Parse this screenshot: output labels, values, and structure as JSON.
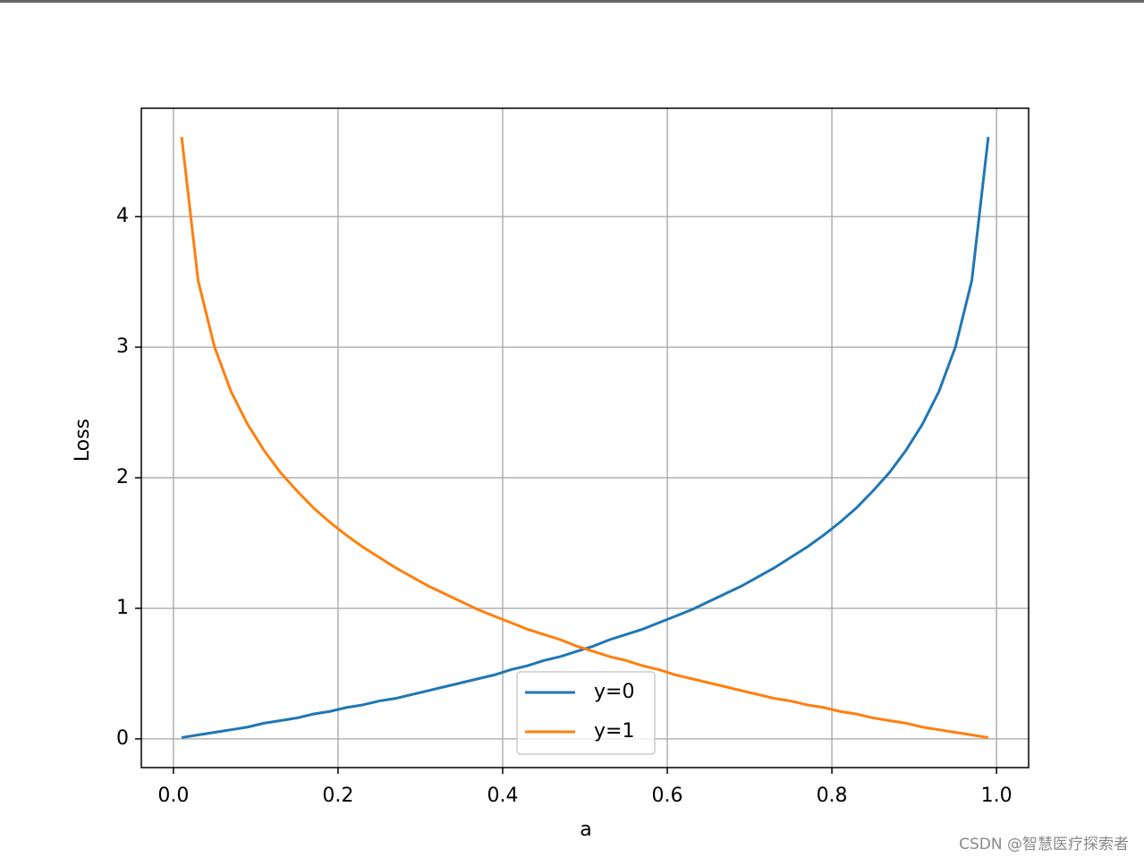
{
  "chart_data": {
    "type": "line",
    "x_label": "a",
    "y_label": "Loss",
    "x": [
      0.01,
      0.03,
      0.05,
      0.07,
      0.09,
      0.11,
      0.13,
      0.15,
      0.17,
      0.19,
      0.21,
      0.23,
      0.25,
      0.27,
      0.29,
      0.31,
      0.33,
      0.35,
      0.37,
      0.39,
      0.41,
      0.43,
      0.45,
      0.47,
      0.49,
      0.51,
      0.53,
      0.55,
      0.57,
      0.59,
      0.61,
      0.63,
      0.65,
      0.67,
      0.69,
      0.71,
      0.73,
      0.75,
      0.77,
      0.79,
      0.81,
      0.83,
      0.85,
      0.87,
      0.89,
      0.91,
      0.93,
      0.95,
      0.97,
      0.99
    ],
    "series": [
      {
        "name": "y=0",
        "color": "#1f77b4",
        "values": [
          0.01,
          0.03,
          0.05,
          0.07,
          0.09,
          0.12,
          0.14,
          0.16,
          0.19,
          0.21,
          0.24,
          0.26,
          0.29,
          0.31,
          0.34,
          0.37,
          0.4,
          0.43,
          0.46,
          0.49,
          0.53,
          0.56,
          0.6,
          0.63,
          0.67,
          0.71,
          0.76,
          0.8,
          0.84,
          0.89,
          0.94,
          0.99,
          1.05,
          1.11,
          1.17,
          1.24,
          1.31,
          1.39,
          1.47,
          1.56,
          1.66,
          1.77,
          1.9,
          2.04,
          2.21,
          2.41,
          2.66,
          3.0,
          3.51,
          4.61
        ]
      },
      {
        "name": "y=1",
        "color": "#ff7f0e",
        "values": [
          4.61,
          3.51,
          3.0,
          2.66,
          2.41,
          2.21,
          2.04,
          1.9,
          1.77,
          1.66,
          1.56,
          1.47,
          1.39,
          1.31,
          1.24,
          1.17,
          1.11,
          1.05,
          0.99,
          0.94,
          0.89,
          0.84,
          0.8,
          0.76,
          0.71,
          0.67,
          0.63,
          0.6,
          0.56,
          0.53,
          0.49,
          0.46,
          0.43,
          0.4,
          0.37,
          0.34,
          0.31,
          0.29,
          0.26,
          0.24,
          0.21,
          0.19,
          0.16,
          0.14,
          0.12,
          0.09,
          0.07,
          0.05,
          0.03,
          0.01
        ]
      }
    ],
    "xlim": [
      -0.039,
      1.039
    ],
    "ylim": [
      -0.22,
      4.83
    ],
    "xticks": [
      {
        "value": 0,
        "label": "0.0"
      },
      0.2,
      0.4,
      0.6,
      0.8,
      {
        "value": 1,
        "label": "1.0"
      }
    ],
    "yticks": [
      0,
      1,
      2,
      3,
      4
    ],
    "grid": true,
    "legend": "lower center"
  },
  "watermark": "CSDN @智慧医疗探索者"
}
